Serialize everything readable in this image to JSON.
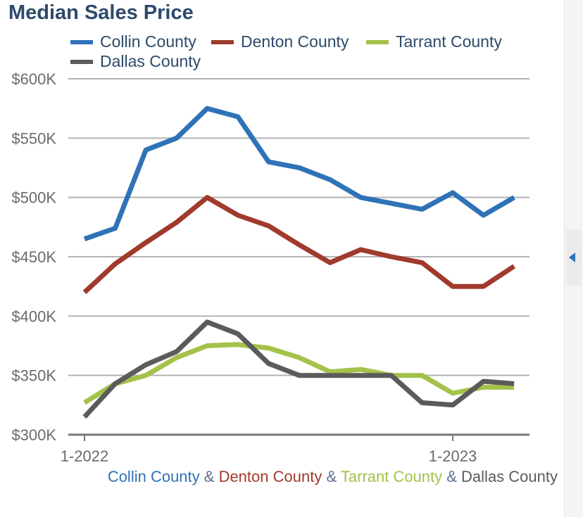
{
  "chart_data": {
    "type": "line",
    "title": "Median Sales Price",
    "xlabel": "",
    "ylabel": "",
    "ylim": [
      300000,
      600000
    ],
    "yticks": [
      300000,
      350000,
      400000,
      450000,
      500000,
      550000,
      600000
    ],
    "ytick_labels": [
      "$300K",
      "$350K",
      "$400K",
      "$450K",
      "$500K",
      "$550K",
      "$600K"
    ],
    "x": [
      "2022-01",
      "2022-02",
      "2022-03",
      "2022-04",
      "2022-05",
      "2022-06",
      "2022-07",
      "2022-08",
      "2022-09",
      "2022-10",
      "2022-11",
      "2022-12",
      "2023-01",
      "2023-02",
      "2023-03"
    ],
    "xtick_labels": [
      {
        "x": "2022-01",
        "label": "1-2022"
      },
      {
        "x": "2023-01",
        "label": "1-2023"
      }
    ],
    "grid": true,
    "legend_position": "top",
    "series": [
      {
        "name": "Collin County",
        "color": "#2f72b8",
        "values": [
          465000,
          474000,
          540000,
          550000,
          575000,
          568000,
          530000,
          525000,
          515000,
          500000,
          495000,
          490000,
          504000,
          485000,
          500000
        ]
      },
      {
        "name": "Denton County",
        "color": "#a03a2c",
        "values": [
          420000,
          444000,
          462000,
          479000,
          500000,
          485000,
          476000,
          460000,
          445000,
          456000,
          450000,
          445000,
          425000,
          425000,
          442000
        ]
      },
      {
        "name": "Tarrant County",
        "color": "#a4c24a",
        "values": [
          327000,
          343000,
          350000,
          365000,
          375000,
          376000,
          373000,
          365000,
          353000,
          355000,
          350000,
          350000,
          335000,
          340000,
          340000
        ]
      },
      {
        "name": "Dallas County",
        "color": "#5b5b5b",
        "values": [
          315000,
          343000,
          359000,
          370000,
          395000,
          385000,
          360000,
          350000,
          350000,
          350000,
          350000,
          327000,
          325000,
          345000,
          343000
        ]
      }
    ]
  },
  "caption": {
    "parts": [
      {
        "text": "Collin County",
        "color": "#2f72b8"
      },
      {
        "text": " & ",
        "color": "#5a6f8e"
      },
      {
        "text": "Denton County",
        "color": "#a03a2c"
      },
      {
        "text": " & ",
        "color": "#5a6f8e"
      },
      {
        "text": "Tarrant County",
        "color": "#a4c24a"
      },
      {
        "text": " & ",
        "color": "#5a6f8e"
      },
      {
        "text": "Dallas County",
        "color": "#5b5b5b"
      }
    ]
  },
  "side_panel": {
    "toggle_icon": "collapse-left-icon"
  }
}
